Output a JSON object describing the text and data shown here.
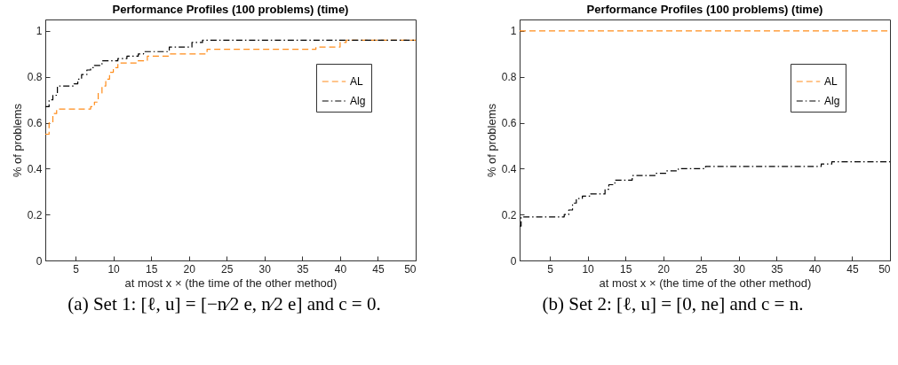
{
  "chart_data": [
    {
      "type": "step",
      "title": "Performance Profiles (100  problems) (time)",
      "xlabel": "at most  x × (the time of the other method)",
      "ylabel": "% of problems",
      "xlim": [
        1,
        50
      ],
      "xticks": [
        5,
        10,
        15,
        20,
        25,
        30,
        35,
        40,
        45,
        50
      ],
      "ylim": [
        0,
        1.05
      ],
      "yticks": [
        0,
        0.2,
        0.4,
        0.6,
        0.8,
        1
      ],
      "grid": false,
      "legend": "top right",
      "annotations": [
        "(a) Set 1: [ℓ, u] = [−n⁄2 e, n⁄2 e] and c = 0."
      ],
      "series": [
        {
          "name": "AL",
          "color": "#ff8c1a",
          "line_style": "dashed",
          "x": [
            1,
            1.5,
            2,
            2.5,
            7,
            7.5,
            8,
            8.5,
            9,
            9.5,
            10,
            10.6,
            13.2,
            14.5,
            17.4,
            22.4,
            36.8,
            40,
            40.8,
            50
          ],
          "values": [
            0.55,
            0.6,
            0.64,
            0.66,
            0.67,
            0.69,
            0.73,
            0.76,
            0.79,
            0.82,
            0.84,
            0.86,
            0.87,
            0.89,
            0.9,
            0.92,
            0.93,
            0.95,
            0.96,
            0.96
          ]
        },
        {
          "name": "Alg",
          "color": "#000000",
          "line_style": "dashdot",
          "x": [
            1,
            1.5,
            2,
            2.6,
            4.8,
            5.3,
            5.8,
            6.5,
            7,
            7.5,
            8.5,
            10.6,
            11.8,
            13.3,
            14,
            17.4,
            20.4,
            21.8,
            50
          ],
          "values": [
            0.67,
            0.7,
            0.72,
            0.76,
            0.77,
            0.79,
            0.81,
            0.83,
            0.84,
            0.85,
            0.87,
            0.88,
            0.89,
            0.9,
            0.91,
            0.93,
            0.95,
            0.96,
            0.96
          ]
        }
      ]
    },
    {
      "type": "step",
      "title": "Performance Profiles (100  problems) (time)",
      "xlabel": "at most  x × (the time of the other method)",
      "ylabel": "% of problems",
      "xlim": [
        1,
        50
      ],
      "xticks": [
        5,
        10,
        15,
        20,
        25,
        30,
        35,
        40,
        45,
        50
      ],
      "ylim": [
        0,
        1.05
      ],
      "yticks": [
        0,
        0.2,
        0.4,
        0.6,
        0.8,
        1
      ],
      "grid": false,
      "legend": "top right",
      "annotations": [
        "(b) Set 2: [ℓ, u] = [0, ne] and c = n."
      ],
      "series": [
        {
          "name": "AL",
          "color": "#ff8c1a",
          "line_style": "dashed",
          "x": [
            1,
            50
          ],
          "values": [
            1,
            1
          ]
        },
        {
          "name": "Alg",
          "color": "#000000",
          "line_style": "dashdot",
          "x": [
            1,
            1.2,
            6.9,
            7.5,
            8,
            8.5,
            9.3,
            10.4,
            12.3,
            12.8,
            13.6,
            15.9,
            18.9,
            20.4,
            22,
            25.6,
            40.9,
            42.3,
            50
          ],
          "values": [
            0.15,
            0.19,
            0.2,
            0.22,
            0.25,
            0.27,
            0.28,
            0.29,
            0.31,
            0.33,
            0.35,
            0.37,
            0.38,
            0.39,
            0.4,
            0.41,
            0.42,
            0.43,
            0.43
          ]
        }
      ]
    }
  ]
}
